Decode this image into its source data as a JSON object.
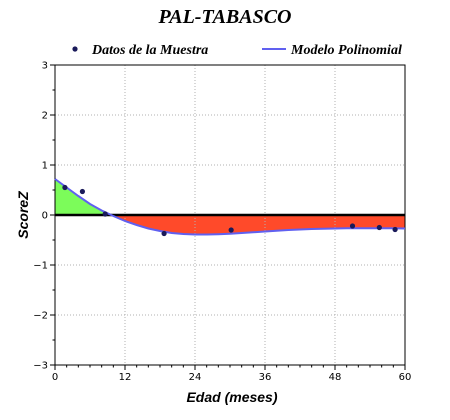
{
  "chart_data": {
    "type": "line",
    "title": "PAL-TABASCO",
    "xlabel": "Edad (meses)",
    "ylabel": "ScoreZ",
    "xlim": [
      0,
      60
    ],
    "ylim": [
      -3,
      3
    ],
    "xticks": [
      0,
      12,
      24,
      36,
      48,
      60
    ],
    "yticks": [
      -3,
      -2,
      -1,
      0,
      1,
      2,
      3
    ],
    "grid": true,
    "legend_position": "top",
    "series": [
      {
        "name": "Datos de la Muestra",
        "kind": "scatter",
        "color": "#1a1a5a",
        "x": [
          1.7,
          4.7,
          8.6,
          18.7,
          30.2,
          51.0,
          55.6,
          58.3
        ],
        "y": [
          0.55,
          0.47,
          0.02,
          -0.37,
          -0.3,
          -0.22,
          -0.25,
          -0.29
        ]
      },
      {
        "name": "Modelo Polinomial",
        "kind": "line",
        "color": "#6060f0",
        "x": [
          0,
          2,
          4,
          6,
          8,
          10,
          12,
          14,
          16,
          18,
          20,
          22,
          24,
          26,
          28,
          30,
          32,
          34,
          36,
          38,
          40,
          42,
          44,
          46,
          48,
          50,
          52,
          54,
          56,
          58,
          60
        ],
        "y": [
          0.72,
          0.55,
          0.38,
          0.22,
          0.09,
          -0.02,
          -0.12,
          -0.2,
          -0.27,
          -0.32,
          -0.36,
          -0.38,
          -0.39,
          -0.39,
          -0.385,
          -0.375,
          -0.36,
          -0.345,
          -0.33,
          -0.315,
          -0.3,
          -0.29,
          -0.28,
          -0.275,
          -0.27,
          -0.265,
          -0.265,
          -0.265,
          -0.265,
          -0.265,
          -0.27
        ]
      }
    ],
    "fill_positive_color": "#7cfc5a",
    "fill_negative_color": "#ff4a2a",
    "zero_line_color": "#000000"
  }
}
